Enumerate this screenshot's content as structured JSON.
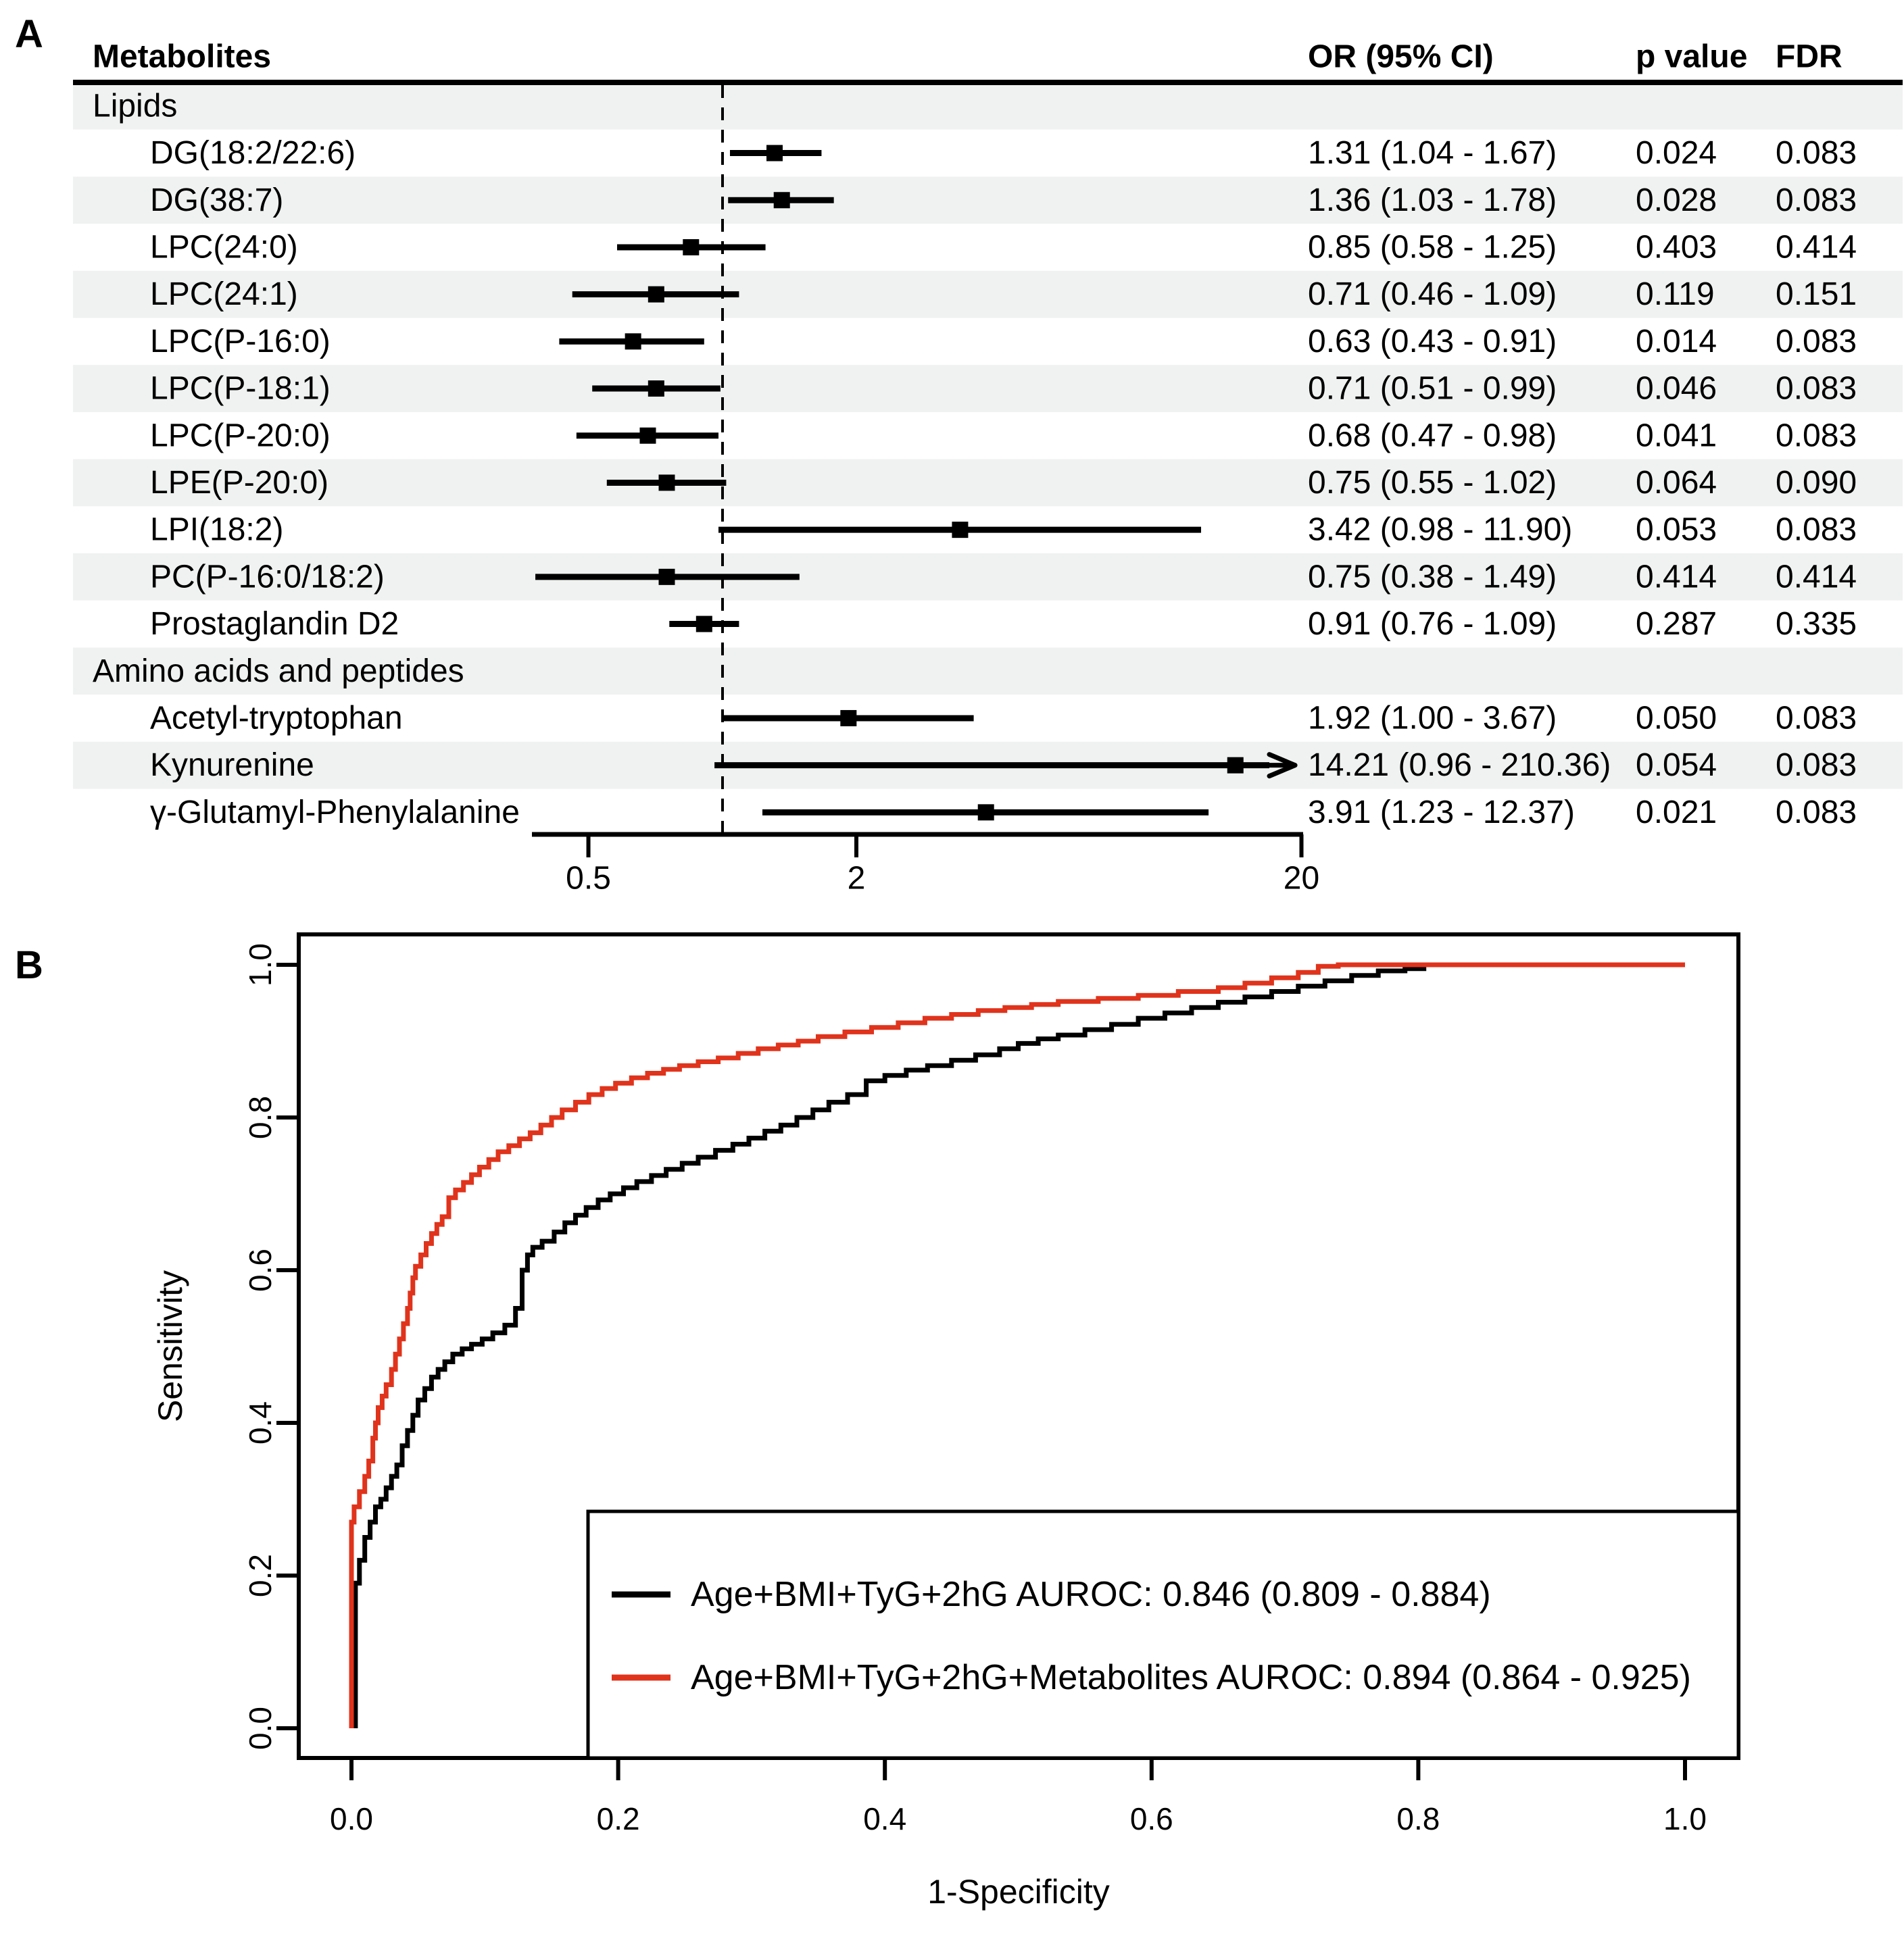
{
  "figure": {
    "panel_a_label": "A",
    "panel_b_label": "B"
  },
  "colors": {
    "row_shade": "#EFF2F0",
    "black": "#000000",
    "red": "#E0331C",
    "text": "#000000"
  },
  "chart_data": [
    {
      "type": "table",
      "name": "forest-plot",
      "panel": "A",
      "columns": {
        "metabolites": "Metabolites",
        "or_ci": "OR (95% CI)",
        "p": "p value",
        "fdr": "FDR"
      },
      "axis": {
        "scale": "log",
        "ticks": [
          "0.5",
          "2",
          "20"
        ],
        "tick_values": [
          0.5,
          2,
          20
        ],
        "reference_or": 1
      },
      "rows": [
        {
          "kind": "group",
          "label": "Lipids"
        },
        {
          "kind": "item",
          "label": "DG(18:2/22:6)",
          "or": 1.31,
          "lo": 1.04,
          "hi": 1.67,
          "or_text": "1.31 (1.04 - 1.67)",
          "p": "0.024",
          "fdr": "0.083"
        },
        {
          "kind": "item",
          "label": "DG(38:7)",
          "or": 1.36,
          "lo": 1.03,
          "hi": 1.78,
          "or_text": "1.36 (1.03 - 1.78)",
          "p": "0.028",
          "fdr": "0.083"
        },
        {
          "kind": "item",
          "label": "LPC(24:0)",
          "or": 0.85,
          "lo": 0.58,
          "hi": 1.25,
          "or_text": "0.85 (0.58 - 1.25)",
          "p": "0.403",
          "fdr": "0.414"
        },
        {
          "kind": "item",
          "label": "LPC(24:1)",
          "or": 0.71,
          "lo": 0.46,
          "hi": 1.09,
          "or_text": "0.71 (0.46 - 1.09)",
          "p": "0.119",
          "fdr": "0.151"
        },
        {
          "kind": "item",
          "label": "LPC(P-16:0)",
          "or": 0.63,
          "lo": 0.43,
          "hi": 0.91,
          "or_text": "0.63 (0.43 - 0.91)",
          "p": "0.014",
          "fdr": "0.083"
        },
        {
          "kind": "item",
          "label": "LPC(P-18:1)",
          "or": 0.71,
          "lo": 0.51,
          "hi": 0.99,
          "or_text": "0.71 (0.51 - 0.99)",
          "p": "0.046",
          "fdr": "0.083"
        },
        {
          "kind": "item",
          "label": "LPC(P-20:0)",
          "or": 0.68,
          "lo": 0.47,
          "hi": 0.98,
          "or_text": "0.68 (0.47 - 0.98)",
          "p": "0.041",
          "fdr": "0.083"
        },
        {
          "kind": "item",
          "label": "LPE(P-20:0)",
          "or": 0.75,
          "lo": 0.55,
          "hi": 1.02,
          "or_text": "0.75 (0.55 - 1.02)",
          "p": "0.064",
          "fdr": "0.090"
        },
        {
          "kind": "item",
          "label": "LPI(18:2)",
          "or": 3.42,
          "lo": 0.98,
          "hi": 11.9,
          "or_text": "3.42 (0.98 - 11.90)",
          "p": "0.053",
          "fdr": "0.083"
        },
        {
          "kind": "item",
          "label": "PC(P-16:0/18:2)",
          "or": 0.75,
          "lo": 0.38,
          "hi": 1.49,
          "or_text": "0.75 (0.38 - 1.49)",
          "p": "0.414",
          "fdr": "0.414"
        },
        {
          "kind": "item",
          "label": "Prostaglandin D2",
          "or": 0.91,
          "lo": 0.76,
          "hi": 1.09,
          "or_text": "0.91 (0.76 - 1.09)",
          "p": "0.287",
          "fdr": "0.335"
        },
        {
          "kind": "group",
          "label": "Amino acids and peptides"
        },
        {
          "kind": "item",
          "label": "Acetyl-tryptophan",
          "or": 1.92,
          "lo": 1.0,
          "hi": 3.67,
          "or_text": "1.92 (1.00 - 3.67)",
          "p": "0.050",
          "fdr": "0.083"
        },
        {
          "kind": "item",
          "label": "Kynurenine",
          "or": 14.21,
          "lo": 0.96,
          "hi": 210.36,
          "arrow": true,
          "or_text": "14.21 (0.96 - 210.36)",
          "p": "0.054",
          "fdr": "0.083"
        },
        {
          "kind": "item",
          "label": "γ-Glutamyl-Phenylalanine",
          "or": 3.91,
          "lo": 1.23,
          "hi": 12.37,
          "or_text": "3.91 (1.23 - 12.37)",
          "p": "0.021",
          "fdr": "0.083"
        }
      ]
    },
    {
      "type": "line",
      "name": "roc-curves",
      "panel": "B",
      "xlabel": "1-Specificity",
      "ylabel": "Sensitivity",
      "xlim": [
        0,
        1
      ],
      "ylim": [
        0,
        1
      ],
      "x_ticks": [
        "0.0",
        "0.2",
        "0.4",
        "0.6",
        "0.8",
        "1.0"
      ],
      "y_ticks": [
        "0.0",
        "0.2",
        "0.4",
        "0.6",
        "0.8",
        "1.0"
      ],
      "grid": false,
      "legend_position": "bottom-right",
      "series": [
        {
          "name": "Age+BMI+TyG+2hG AUROC: 0.846 (0.809 - 0.884)",
          "color_key": "black",
          "points": [
            [
              0.003,
              0
            ],
            [
              0.003,
              0.15
            ],
            [
              0.006,
              0.19
            ],
            [
              0.01,
              0.22
            ],
            [
              0.014,
              0.25
            ],
            [
              0.018,
              0.27
            ],
            [
              0.022,
              0.29
            ],
            [
              0.026,
              0.3
            ],
            [
              0.03,
              0.315
            ],
            [
              0.034,
              0.33
            ],
            [
              0.038,
              0.345
            ],
            [
              0.042,
              0.37
            ],
            [
              0.046,
              0.39
            ],
            [
              0.05,
              0.41
            ],
            [
              0.055,
              0.43
            ],
            [
              0.06,
              0.445
            ],
            [
              0.065,
              0.46
            ],
            [
              0.07,
              0.47
            ],
            [
              0.076,
              0.48
            ],
            [
              0.083,
              0.49
            ],
            [
              0.09,
              0.497
            ],
            [
              0.098,
              0.503
            ],
            [
              0.106,
              0.51
            ],
            [
              0.115,
              0.518
            ],
            [
              0.123,
              0.528
            ],
            [
              0.128,
              0.55
            ],
            [
              0.132,
              0.6
            ],
            [
              0.136,
              0.62
            ],
            [
              0.143,
              0.63
            ],
            [
              0.152,
              0.638
            ],
            [
              0.16,
              0.65
            ],
            [
              0.168,
              0.662
            ],
            [
              0.176,
              0.672
            ],
            [
              0.185,
              0.682
            ],
            [
              0.194,
              0.692
            ],
            [
              0.204,
              0.7
            ],
            [
              0.214,
              0.708
            ],
            [
              0.225,
              0.716
            ],
            [
              0.236,
              0.724
            ],
            [
              0.248,
              0.732
            ],
            [
              0.26,
              0.74
            ],
            [
              0.273,
              0.748
            ],
            [
              0.286,
              0.757
            ],
            [
              0.298,
              0.765
            ],
            [
              0.31,
              0.773
            ],
            [
              0.322,
              0.782
            ],
            [
              0.334,
              0.79
            ],
            [
              0.346,
              0.8
            ],
            [
              0.358,
              0.81
            ],
            [
              0.372,
              0.82
            ],
            [
              0.386,
              0.83
            ],
            [
              0.4,
              0.848
            ],
            [
              0.416,
              0.855
            ],
            [
              0.432,
              0.862
            ],
            [
              0.45,
              0.868
            ],
            [
              0.468,
              0.875
            ],
            [
              0.486,
              0.882
            ],
            [
              0.5,
              0.89
            ],
            [
              0.515,
              0.897
            ],
            [
              0.53,
              0.903
            ],
            [
              0.55,
              0.908
            ],
            [
              0.57,
              0.915
            ],
            [
              0.59,
              0.922
            ],
            [
              0.61,
              0.93
            ],
            [
              0.63,
              0.937
            ],
            [
              0.65,
              0.944
            ],
            [
              0.67,
              0.951
            ],
            [
              0.69,
              0.958
            ],
            [
              0.71,
              0.965
            ],
            [
              0.73,
              0.972
            ],
            [
              0.75,
              0.979
            ],
            [
              0.77,
              0.986
            ],
            [
              0.79,
              0.992
            ],
            [
              0.806,
              0.995
            ]
          ]
        },
        {
          "name": "Age+BMI+TyG+2hG+Metabolites AUROC: 0.894 (0.864 - 0.925)",
          "color_key": "red",
          "points": [
            [
              0,
              0
            ],
            [
              0.002,
              0.27
            ],
            [
              0.006,
              0.29
            ],
            [
              0.01,
              0.31
            ],
            [
              0.013,
              0.33
            ],
            [
              0.016,
              0.35
            ],
            [
              0.018,
              0.38
            ],
            [
              0.02,
              0.4
            ],
            [
              0.023,
              0.42
            ],
            [
              0.026,
              0.435
            ],
            [
              0.03,
              0.45
            ],
            [
              0.033,
              0.47
            ],
            [
              0.036,
              0.49
            ],
            [
              0.039,
              0.51
            ],
            [
              0.042,
              0.53
            ],
            [
              0.044,
              0.55
            ],
            [
              0.046,
              0.57
            ],
            [
              0.048,
              0.59
            ],
            [
              0.052,
              0.605
            ],
            [
              0.056,
              0.62
            ],
            [
              0.06,
              0.635
            ],
            [
              0.064,
              0.648
            ],
            [
              0.068,
              0.66
            ],
            [
              0.073,
              0.67
            ],
            [
              0.078,
              0.695
            ],
            [
              0.084,
              0.705
            ],
            [
              0.09,
              0.715
            ],
            [
              0.096,
              0.725
            ],
            [
              0.103,
              0.735
            ],
            [
              0.11,
              0.745
            ],
            [
              0.118,
              0.755
            ],
            [
              0.126,
              0.763
            ],
            [
              0.134,
              0.772
            ],
            [
              0.142,
              0.78
            ],
            [
              0.15,
              0.79
            ],
            [
              0.158,
              0.8
            ],
            [
              0.168,
              0.81
            ],
            [
              0.178,
              0.82
            ],
            [
              0.188,
              0.83
            ],
            [
              0.198,
              0.838
            ],
            [
              0.21,
              0.845
            ],
            [
              0.222,
              0.852
            ],
            [
              0.234,
              0.858
            ],
            [
              0.246,
              0.863
            ],
            [
              0.26,
              0.868
            ],
            [
              0.275,
              0.873
            ],
            [
              0.29,
              0.878
            ],
            [
              0.305,
              0.884
            ],
            [
              0.32,
              0.89
            ],
            [
              0.335,
              0.895
            ],
            [
              0.35,
              0.9
            ],
            [
              0.37,
              0.906
            ],
            [
              0.39,
              0.912
            ],
            [
              0.41,
              0.918
            ],
            [
              0.43,
              0.924
            ],
            [
              0.45,
              0.93
            ],
            [
              0.47,
              0.935
            ],
            [
              0.49,
              0.94
            ],
            [
              0.51,
              0.944
            ],
            [
              0.53,
              0.948
            ],
            [
              0.56,
              0.952
            ],
            [
              0.59,
              0.956
            ],
            [
              0.62,
              0.96
            ],
            [
              0.65,
              0.965
            ],
            [
              0.67,
              0.97
            ],
            [
              0.69,
              0.976
            ],
            [
              0.71,
              0.983
            ],
            [
              0.725,
              0.99
            ],
            [
              0.74,
              0.998
            ],
            [
              0.75,
              1
            ],
            [
              1,
              1
            ]
          ]
        }
      ]
    }
  ]
}
